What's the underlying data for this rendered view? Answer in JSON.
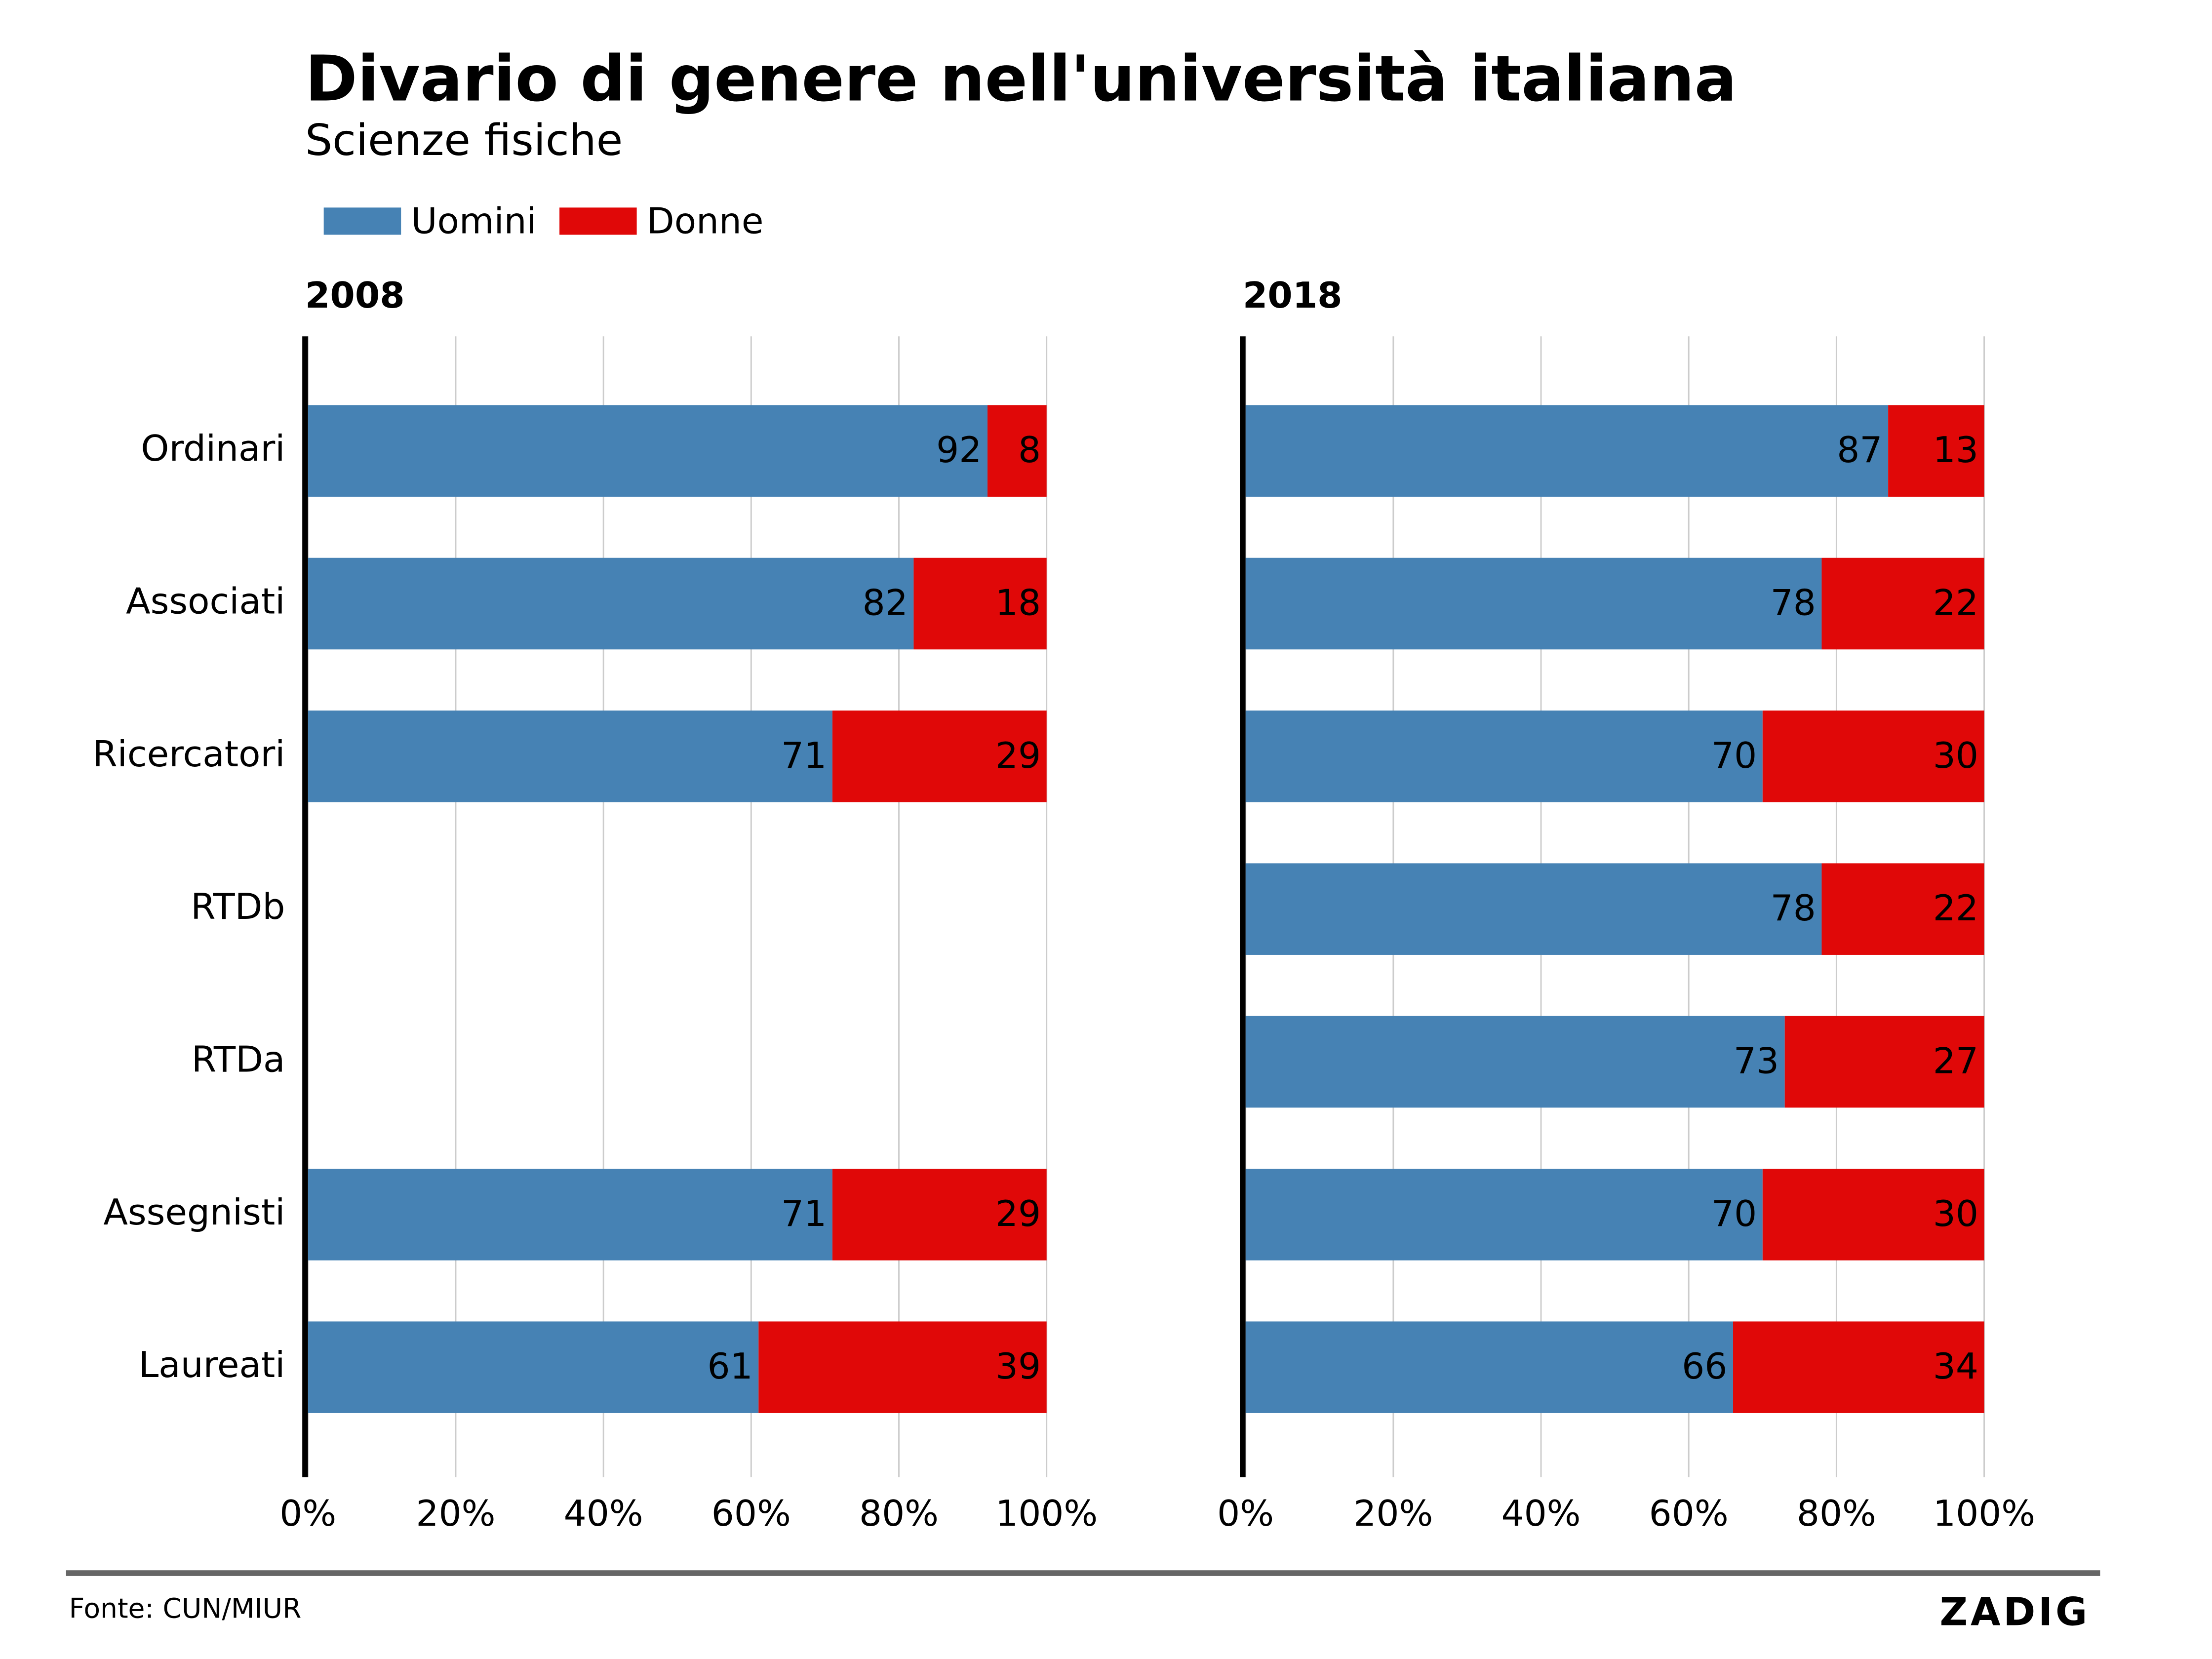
{
  "title": "Divario di genere nell'università italiana",
  "subtitle": "Scienze fisiche",
  "source": "Fonte: CUN/MIUR",
  "logo": "ZADIG",
  "chart_data": [
    {
      "type": "bar",
      "title": "2008",
      "categories": [
        "Ordinari",
        "Associati",
        "Ricercatori",
        "RTDb",
        "RTDa",
        "Assegnisti",
        "Laureati"
      ],
      "series": [
        {
          "name": "Uomini",
          "color": "#4682b4",
          "values": [
            92,
            82,
            71,
            null,
            null,
            71,
            61
          ]
        },
        {
          "name": "Donne",
          "color": "#e00808",
          "values": [
            8,
            18,
            29,
            null,
            null,
            29,
            39
          ]
        }
      ],
      "xlim": [
        0,
        100
      ],
      "xticks": [
        {
          "value": 0,
          "label": "0%"
        },
        {
          "value": 20,
          "label": "20%"
        },
        {
          "value": 40,
          "label": "40%"
        },
        {
          "value": 60,
          "label": "60%"
        },
        {
          "value": 80,
          "label": "80%"
        },
        {
          "value": 100,
          "label": "100%"
        }
      ],
      "grid": true
    },
    {
      "type": "bar",
      "title": "2018",
      "series": [
        {
          "color": "#4682b4",
          "values": [
            87,
            78,
            70,
            78,
            73,
            70,
            66
          ]
        },
        {
          "color": "#e00808",
          "values": [
            13,
            22,
            30,
            22,
            27,
            30,
            34
          ]
        }
      ],
      "xlim": [
        0,
        100
      ],
      "xticks": [
        {
          "value": 0,
          "label": "0%"
        },
        {
          "value": 20,
          "label": "20%"
        },
        {
          "value": 40,
          "label": "40%"
        },
        {
          "value": 60,
          "label": "60%"
        },
        {
          "value": 80,
          "label": "80%"
        },
        {
          "value": 100,
          "label": "100%"
        }
      ],
      "grid": true
    }
  ]
}
